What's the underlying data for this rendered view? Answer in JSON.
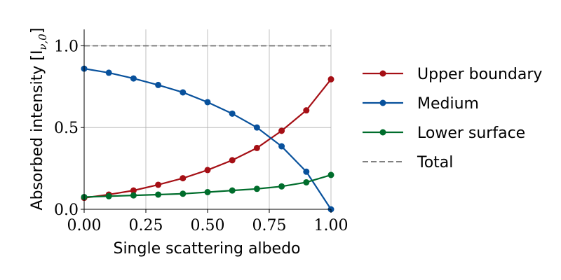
{
  "chart_data": {
    "type": "line",
    "xlabel": "Single scattering albedo",
    "ylabel": "Absorbed intensity [I",
    "ylabel_sub": "ν,0",
    "ylabel_close": "]",
    "xlim": [
      0,
      1
    ],
    "ylim": [
      0,
      1.1
    ],
    "x_ticks": [
      0,
      0.25,
      0.5,
      0.75,
      1.0
    ],
    "x_tick_labels": [
      "0.00",
      "0.25",
      "0.50",
      "0.75",
      "1.00"
    ],
    "y_ticks": [
      0,
      0.5,
      1.0
    ],
    "y_tick_labels": [
      "0.0",
      "0.5",
      "1.0"
    ],
    "grid": true,
    "legend_position": "right, outside plot",
    "x": [
      0.0,
      0.1,
      0.2,
      0.3,
      0.4,
      0.5,
      0.6,
      0.7,
      0.8,
      0.9,
      1.0
    ],
    "series": [
      {
        "name": "Upper boundary",
        "color": "#a50f15",
        "style": "solid",
        "markers": true,
        "values": [
          0.07,
          0.09,
          0.115,
          0.15,
          0.19,
          0.24,
          0.3,
          0.375,
          0.48,
          0.605,
          0.795
        ]
      },
      {
        "name": "Medium",
        "color": "#08519c",
        "style": "solid",
        "markers": true,
        "values": [
          0.86,
          0.835,
          0.8,
          0.76,
          0.715,
          0.655,
          0.585,
          0.5,
          0.385,
          0.23,
          0.0
        ]
      },
      {
        "name": "Lower surface",
        "color": "#006d2c",
        "style": "solid",
        "markers": true,
        "values": [
          0.075,
          0.08,
          0.085,
          0.09,
          0.095,
          0.105,
          0.115,
          0.125,
          0.14,
          0.165,
          0.21
        ]
      },
      {
        "name": "Total",
        "color": "#808080",
        "style": "dashed",
        "markers": false,
        "values": [
          1.0,
          1.0,
          1.0,
          1.0,
          1.0,
          1.0,
          1.0,
          1.0,
          1.0,
          1.0,
          1.0
        ]
      }
    ]
  }
}
